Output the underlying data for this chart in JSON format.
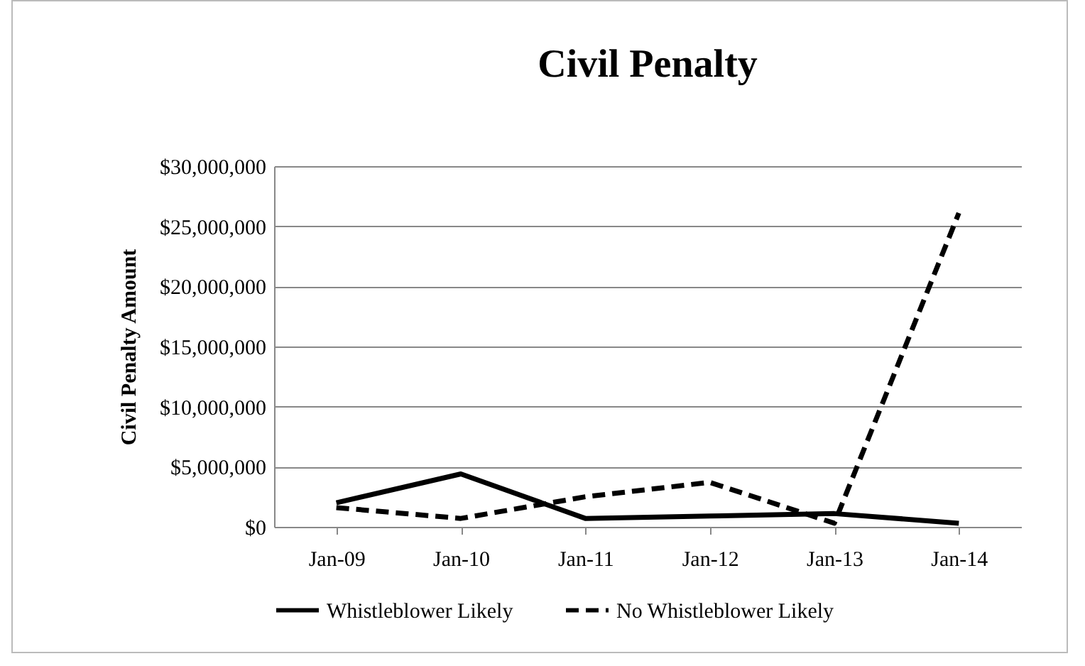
{
  "chart_data": {
    "type": "line",
    "title": "Civil Penalty",
    "ylabel": "Civil Penalty Amount",
    "categories": [
      "Jan-09",
      "Jan-10",
      "Jan-11",
      "Jan-12",
      "Jan-13",
      "Jan-14"
    ],
    "series": [
      {
        "name": "Whistleblower Likely",
        "color": "#000000",
        "line_style": "solid",
        "values": [
          2000000,
          4400000,
          700000,
          900000,
          1100000,
          300000
        ]
      },
      {
        "name": "No Whistleblower Likely",
        "color": "#000000",
        "line_style": "dashed",
        "values": [
          1600000,
          700000,
          2500000,
          3700000,
          300000,
          26100000
        ]
      }
    ],
    "ylim": [
      0,
      30000000
    ],
    "yticks": [
      {
        "value": 0,
        "label": "$0"
      },
      {
        "value": 5000000,
        "label": "$5,000,000"
      },
      {
        "value": 10000000,
        "label": "$10,000,000"
      },
      {
        "value": 15000000,
        "label": "$15,000,000"
      },
      {
        "value": 20000000,
        "label": "$20,000,000"
      },
      {
        "value": 25000000,
        "label": "$25,000,000"
      },
      {
        "value": 30000000,
        "label": "$30,000,000"
      }
    ],
    "grid": "y",
    "legend": "bottom",
    "marker": "none"
  }
}
